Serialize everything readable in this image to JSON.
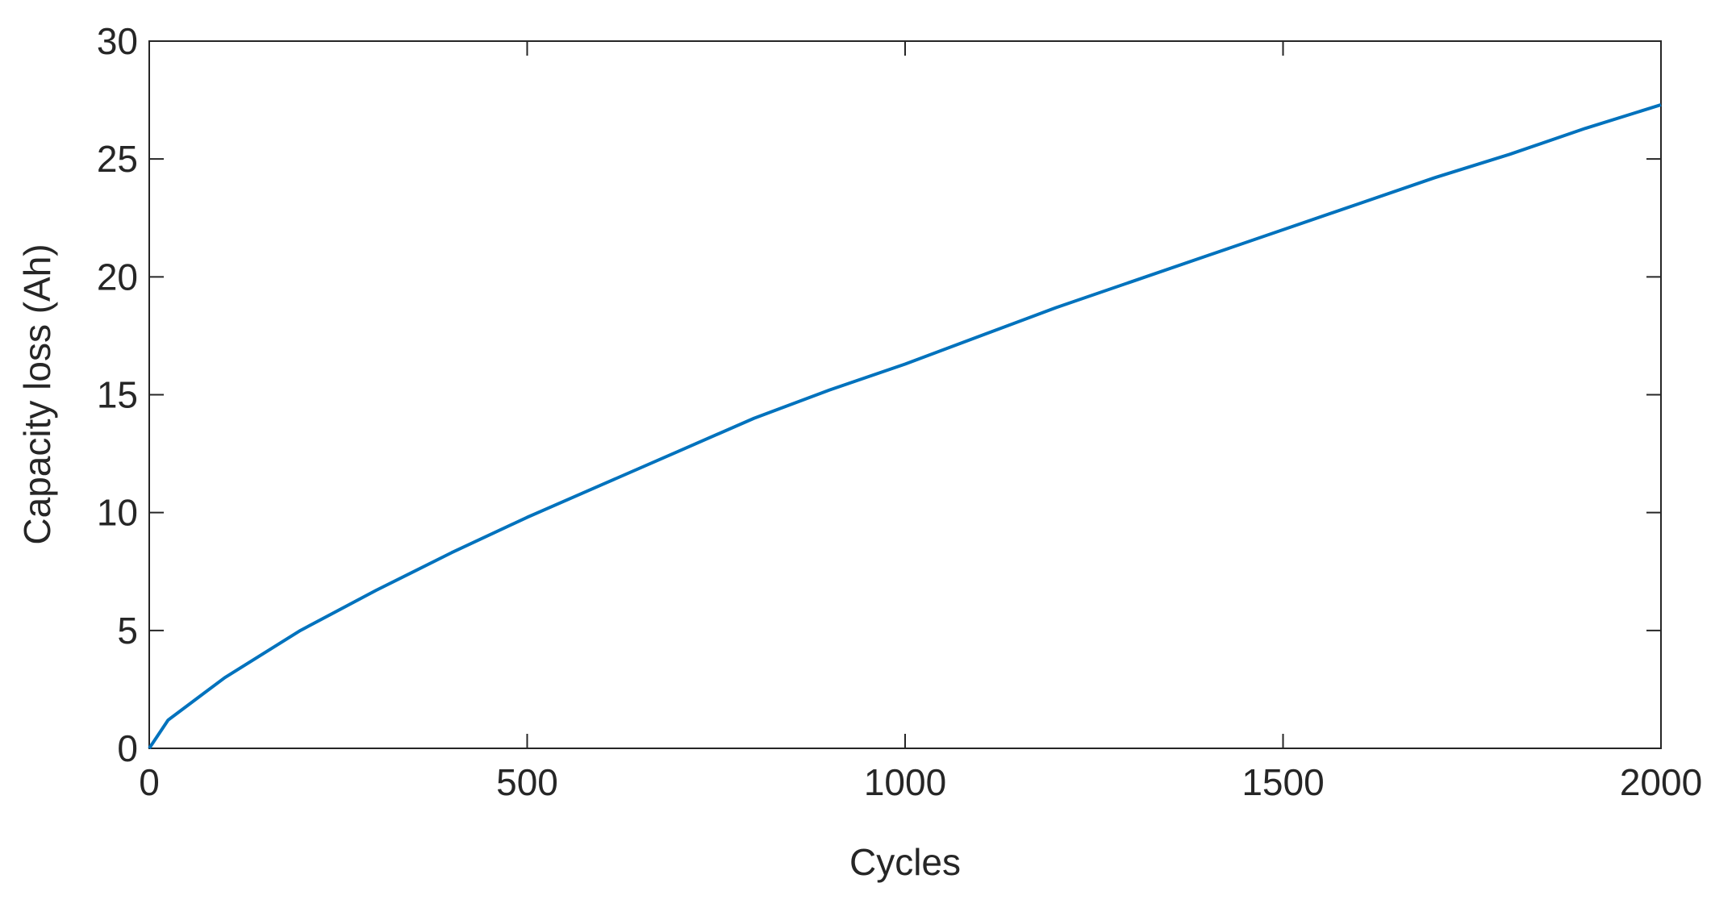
{
  "chart_data": {
    "type": "line",
    "x_label": "Cycles",
    "y_label": "Capacity loss (Ah)",
    "x": [
      0,
      25,
      50,
      100,
      200,
      300,
      400,
      500,
      600,
      700,
      800,
      900,
      1000,
      1100,
      1200,
      1300,
      1400,
      1500,
      1600,
      1700,
      1800,
      1900,
      2000
    ],
    "series": [
      {
        "name": "Capacity loss",
        "color": "#0072bd",
        "values": [
          0,
          1.2,
          1.8,
          3.0,
          5.0,
          6.7,
          8.3,
          9.8,
          11.2,
          12.6,
          14.0,
          15.2,
          16.3,
          17.5,
          18.7,
          19.8,
          20.9,
          22.0,
          23.1,
          24.2,
          25.2,
          26.3,
          27.3
        ]
      }
    ],
    "xlim": [
      0,
      2000
    ],
    "xticks": [
      0,
      500,
      1000,
      1500,
      2000
    ],
    "ylim": [
      0,
      30
    ],
    "yticks": [
      0,
      5,
      10,
      15,
      20,
      25,
      30
    ],
    "grid": false
  }
}
